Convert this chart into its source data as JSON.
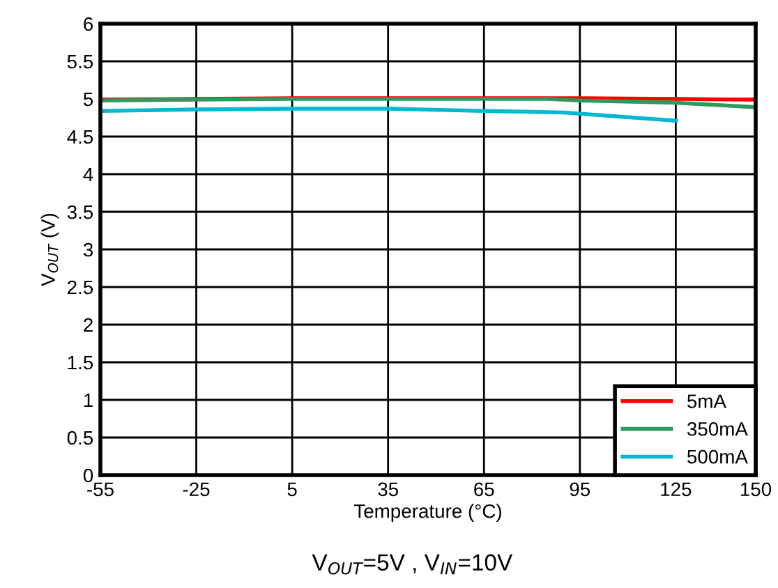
{
  "chart_data": {
    "type": "line",
    "xlabel": "Temperature (°C)",
    "ylabel": "V$_{OUT}$ (V)",
    "annotations": [
      "V$_{OUT}$=5V , V$_{IN}$=10V"
    ],
    "series": [
      {
        "name": "5mA",
        "color": "#ff0000",
        "x": [
          -55,
          -25,
          5,
          35,
          65,
          95,
          125,
          150
        ],
        "values": [
          4.99,
          5.0,
          5.01,
          5.01,
          5.01,
          5.01,
          5.0,
          4.99
        ]
      },
      {
        "name": "350mA",
        "color": "#2e9a5e",
        "x": [
          -55,
          -25,
          5,
          35,
          65,
          85,
          95,
          125,
          150
        ],
        "values": [
          4.98,
          4.99,
          5.0,
          5.0,
          5.0,
          5.0,
          4.98,
          4.95,
          4.89
        ]
      },
      {
        "name": "500mA",
        "color": "#00b8d0",
        "x": [
          -55,
          -25,
          5,
          35,
          65,
          90,
          125
        ],
        "values": [
          4.84,
          4.86,
          4.87,
          4.87,
          4.84,
          4.82,
          4.71
        ]
      }
    ],
    "xlim": [
      -55,
      150
    ],
    "xticks": [
      -55,
      -25,
      5,
      35,
      65,
      95,
      125,
      150
    ],
    "ylim": [
      0,
      6
    ],
    "yticks": [
      0,
      0.5,
      1,
      1.5,
      2,
      2.5,
      3,
      3.5,
      4,
      4.5,
      5,
      5.5,
      6
    ],
    "grid": true,
    "legend": "bottom right",
    "marker": "none",
    "line_style": "solid"
  }
}
